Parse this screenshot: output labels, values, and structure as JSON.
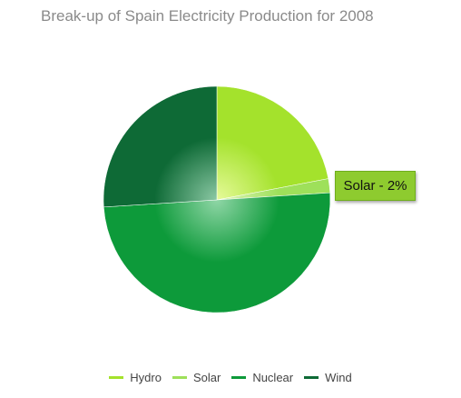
{
  "chart_data": {
    "type": "pie",
    "title": "Break-up of Spain Electricity Production for 2008",
    "categories": [
      "Hydro",
      "Solar",
      "Nuclear",
      "Wind"
    ],
    "values": [
      22,
      2,
      50,
      26
    ],
    "colors": [
      "#a4e22c",
      "#9ee05a",
      "#0d9a3a",
      "#0e6a36"
    ],
    "legend": "bottom",
    "tooltip": {
      "category": "Solar",
      "text": "Solar - 2%"
    }
  }
}
